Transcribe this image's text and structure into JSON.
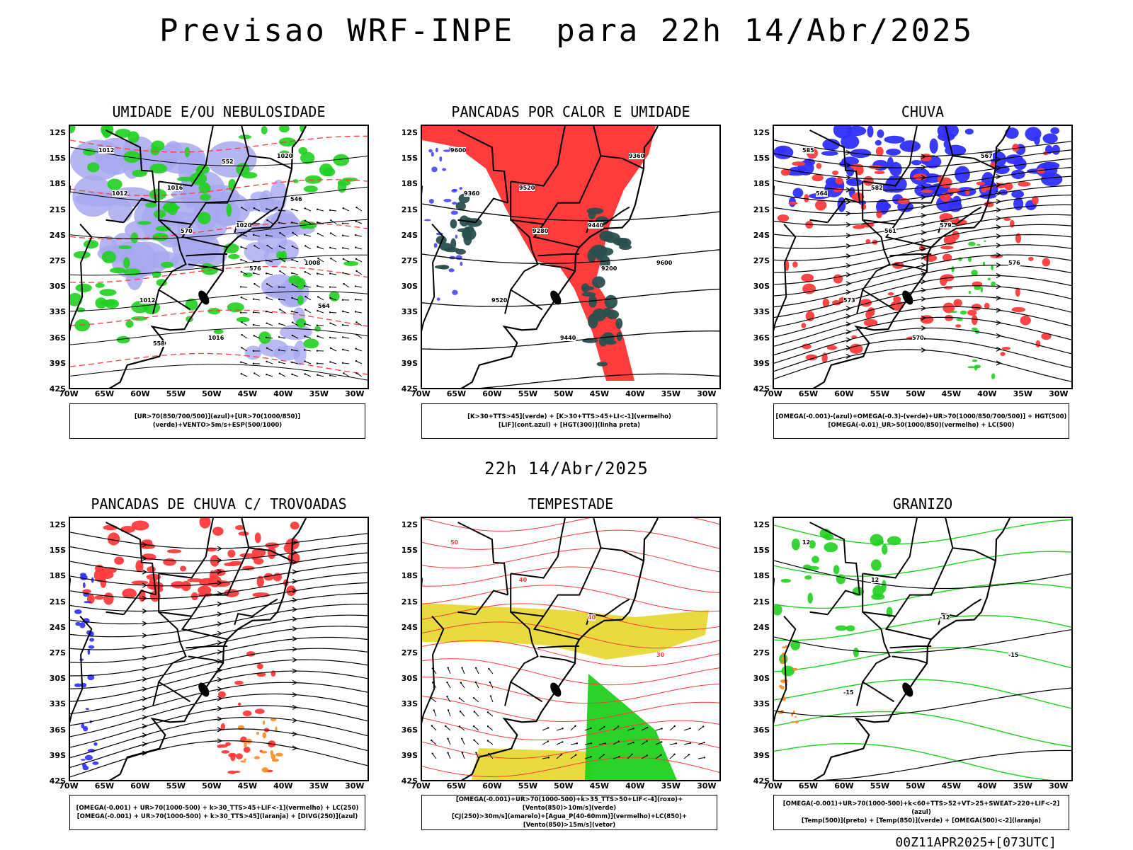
{
  "header": {
    "title": "Previsao WRF-INPE  para 22h 14/Abr/2025"
  },
  "mid_date": "22h 14/Abr/2025",
  "footer": {
    "run": "00Z11APR2025+[073UTC]"
  },
  "axes": {
    "lat_labels": [
      "12S",
      "15S",
      "18S",
      "21S",
      "24S",
      "27S",
      "30S",
      "33S",
      "36S",
      "39S",
      "42S"
    ],
    "lon_labels": [
      "70W",
      "65W",
      "60W",
      "55W",
      "50W",
      "45W",
      "40W",
      "35W",
      "30W"
    ]
  },
  "colors": {
    "blue": "#2f2fff",
    "green": "#1fd01f",
    "red": "#ff3b3b",
    "teal": "#2a4f4f",
    "yellow": "#e6d62a",
    "lavender": "#a8a8f0",
    "orange": "#ff8a1f"
  },
  "panels": [
    {
      "title": "UMIDADE E/OU NEBULOSIDADE",
      "legend": [
        "[UR>70(850/700/500)](azul)+[UR>70(1000/850)](verde)+VENTO>5m/s+ESP(500/1000)"
      ],
      "contour_labels": [
        "1012",
        "1016",
        "1020",
        "1008",
        "1012",
        "1016",
        "1020",
        "1012",
        "570",
        "576",
        "564",
        "558",
        "552",
        "546"
      ]
    },
    {
      "title": "PANCADAS POR CALOR E UMIDADE",
      "legend": [
        "[K>30+TTS>45](verde) + [K>30+TTS>45+LI<-1](vermelho)",
        "[LIF](cont.azul) + [HGT(300)](linha preta)"
      ],
      "contour_labels": [
        "9600",
        "9520",
        "9440",
        "9600",
        "9520",
        "9440",
        "9360",
        "9360",
        "9280",
        "9200"
      ]
    },
    {
      "title": "CHUVA",
      "legend": [
        "[OMEGA(-0.001)-(azul)+OMEGA(-0.3)-(verde)+UR>70(1000/850/700/500)] + HGT(500)",
        "[OMEGA(-0.01)_UR>50(1000/850)(vermelho) + LC(500)"
      ],
      "contour_labels": [
        "585",
        "582",
        "579",
        "576",
        "573",
        "570",
        "567",
        "564",
        "561"
      ]
    },
    {
      "title": "PANCADAS DE CHUVA C/ TROVOADAS",
      "legend": [
        "[OMEGA(-0.001) + UR>70(1000-500) + k>30_TTS>45+LIF<-1](vermelho) + LC(250)",
        "[OMEGA(-0.001) + UR>70(1000-500) + k>30_TTS>45](laranja) + [DIVG(250)](azul)"
      ]
    },
    {
      "title": "TEMPESTADE",
      "legend": [
        "[OMEGA(-0.001)+UR>70(1000-500)+k>35_TTS>50+LIF<-4](roxo)+[Vento(850)>10m/s](verde)",
        "[CJ(250)>30m/s](amarelo)+[Agua_P(40-60mm)](vermelho)+LC(850)+[Vento(850)>15m/s](vetor)"
      ],
      "contour_labels": [
        "50",
        "40",
        "40",
        "30"
      ]
    },
    {
      "title": "GRANIZO",
      "legend": [
        "[OMEGA(-0.001)+UR>70(1000-500)+k<60+TTS>52+VT>25+SWEAT>220+LIF<-2](azul)",
        "[Temp(500)](preto) + [Temp(850)](verde) + [OMEGA(500)<-2](laranja)"
      ],
      "contour_labels": [
        "12",
        "12",
        "-12",
        "-15",
        "-15"
      ]
    }
  ]
}
